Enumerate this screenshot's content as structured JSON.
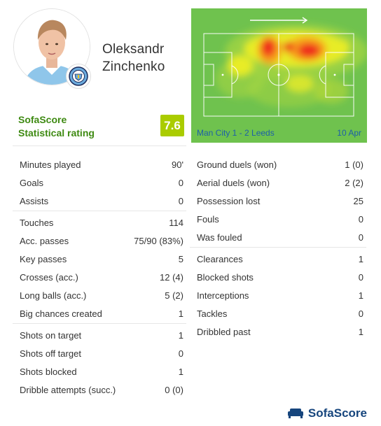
{
  "player": {
    "first_name": "Oleksandr",
    "last_name": "Zinchenko"
  },
  "rating": {
    "label_line1": "SofaScore",
    "label_line2": "Statistical rating",
    "value": "7.6",
    "color": "#aacc00"
  },
  "heatmap": {
    "match": "Man City 1 - 2 Leeds",
    "date": "10 Apr",
    "attack_direction": "right",
    "pitch_color": "#6fc24e"
  },
  "stats_left": [
    [
      {
        "label": "Minutes played",
        "value": "90'"
      },
      {
        "label": "Goals",
        "value": "0"
      },
      {
        "label": "Assists",
        "value": "0"
      }
    ],
    [
      {
        "label": "Touches",
        "value": "114"
      },
      {
        "label": "Acc. passes",
        "value": "75/90 (83%)"
      },
      {
        "label": "Key passes",
        "value": "5"
      },
      {
        "label": "Crosses (acc.)",
        "value": "12 (4)"
      },
      {
        "label": "Long balls (acc.)",
        "value": "5 (2)"
      },
      {
        "label": "Big chances created",
        "value": "1"
      }
    ],
    [
      {
        "label": "Shots on target",
        "value": "1"
      },
      {
        "label": "Shots off target",
        "value": "0"
      },
      {
        "label": "Shots blocked",
        "value": "1"
      },
      {
        "label": "Dribble attempts (succ.)",
        "value": "0 (0)"
      }
    ]
  ],
  "stats_right": [
    [
      {
        "label": "Ground duels (won)",
        "value": "1 (0)"
      },
      {
        "label": "Aerial duels (won)",
        "value": "2 (2)"
      },
      {
        "label": "Possession lost",
        "value": "25"
      },
      {
        "label": "Fouls",
        "value": "0"
      },
      {
        "label": "Was fouled",
        "value": "0"
      }
    ],
    [
      {
        "label": "Clearances",
        "value": "1"
      },
      {
        "label": "Blocked shots",
        "value": "0"
      },
      {
        "label": "Interceptions",
        "value": "1"
      },
      {
        "label": "Tackles",
        "value": "0"
      },
      {
        "label": "Dribbled past",
        "value": "1"
      }
    ]
  ],
  "footer": {
    "brand": "SofaScore"
  }
}
